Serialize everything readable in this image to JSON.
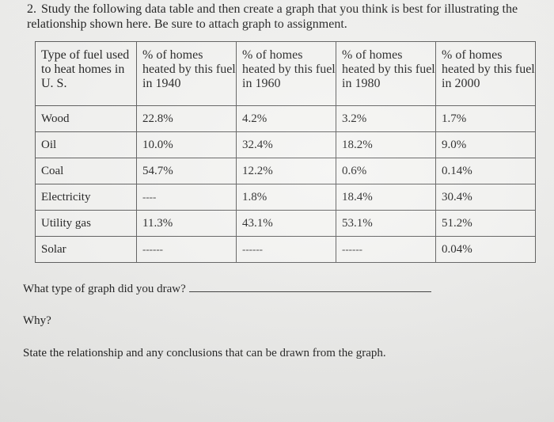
{
  "question": {
    "number": "2.",
    "text": "Study the following data table and then create a graph that you think is best for illustrating the relationship shown here. Be sure to attach graph to assignment."
  },
  "table": {
    "headers": [
      "Type of fuel used to heat homes in U. S.",
      "% of homes heated by this fuel in 1940",
      "% of homes heated by this fuel in 1960",
      "% of homes heated by this fuel in 1980",
      "% of homes heated by this fuel in 2000"
    ],
    "rows": [
      [
        "Wood",
        "22.8%",
        "4.2%",
        "3.2%",
        "1.7%"
      ],
      [
        "Oil",
        "10.0%",
        "32.4%",
        "18.2%",
        "9.0%"
      ],
      [
        "Coal",
        "54.7%",
        "12.2%",
        "0.6%",
        "0.14%"
      ],
      [
        "Electricity",
        "----",
        "1.8%",
        "18.4%",
        "30.4%"
      ],
      [
        "Utility gas",
        "11.3%",
        "43.1%",
        "53.1%",
        "51.2%"
      ],
      [
        "Solar",
        "------",
        "------",
        "------",
        "0.04%"
      ]
    ]
  },
  "prompts": {
    "graph_type": "What type of graph did you draw?",
    "why": "Why?",
    "relationship": "State the relationship and any conclusions that can be drawn from the graph."
  }
}
